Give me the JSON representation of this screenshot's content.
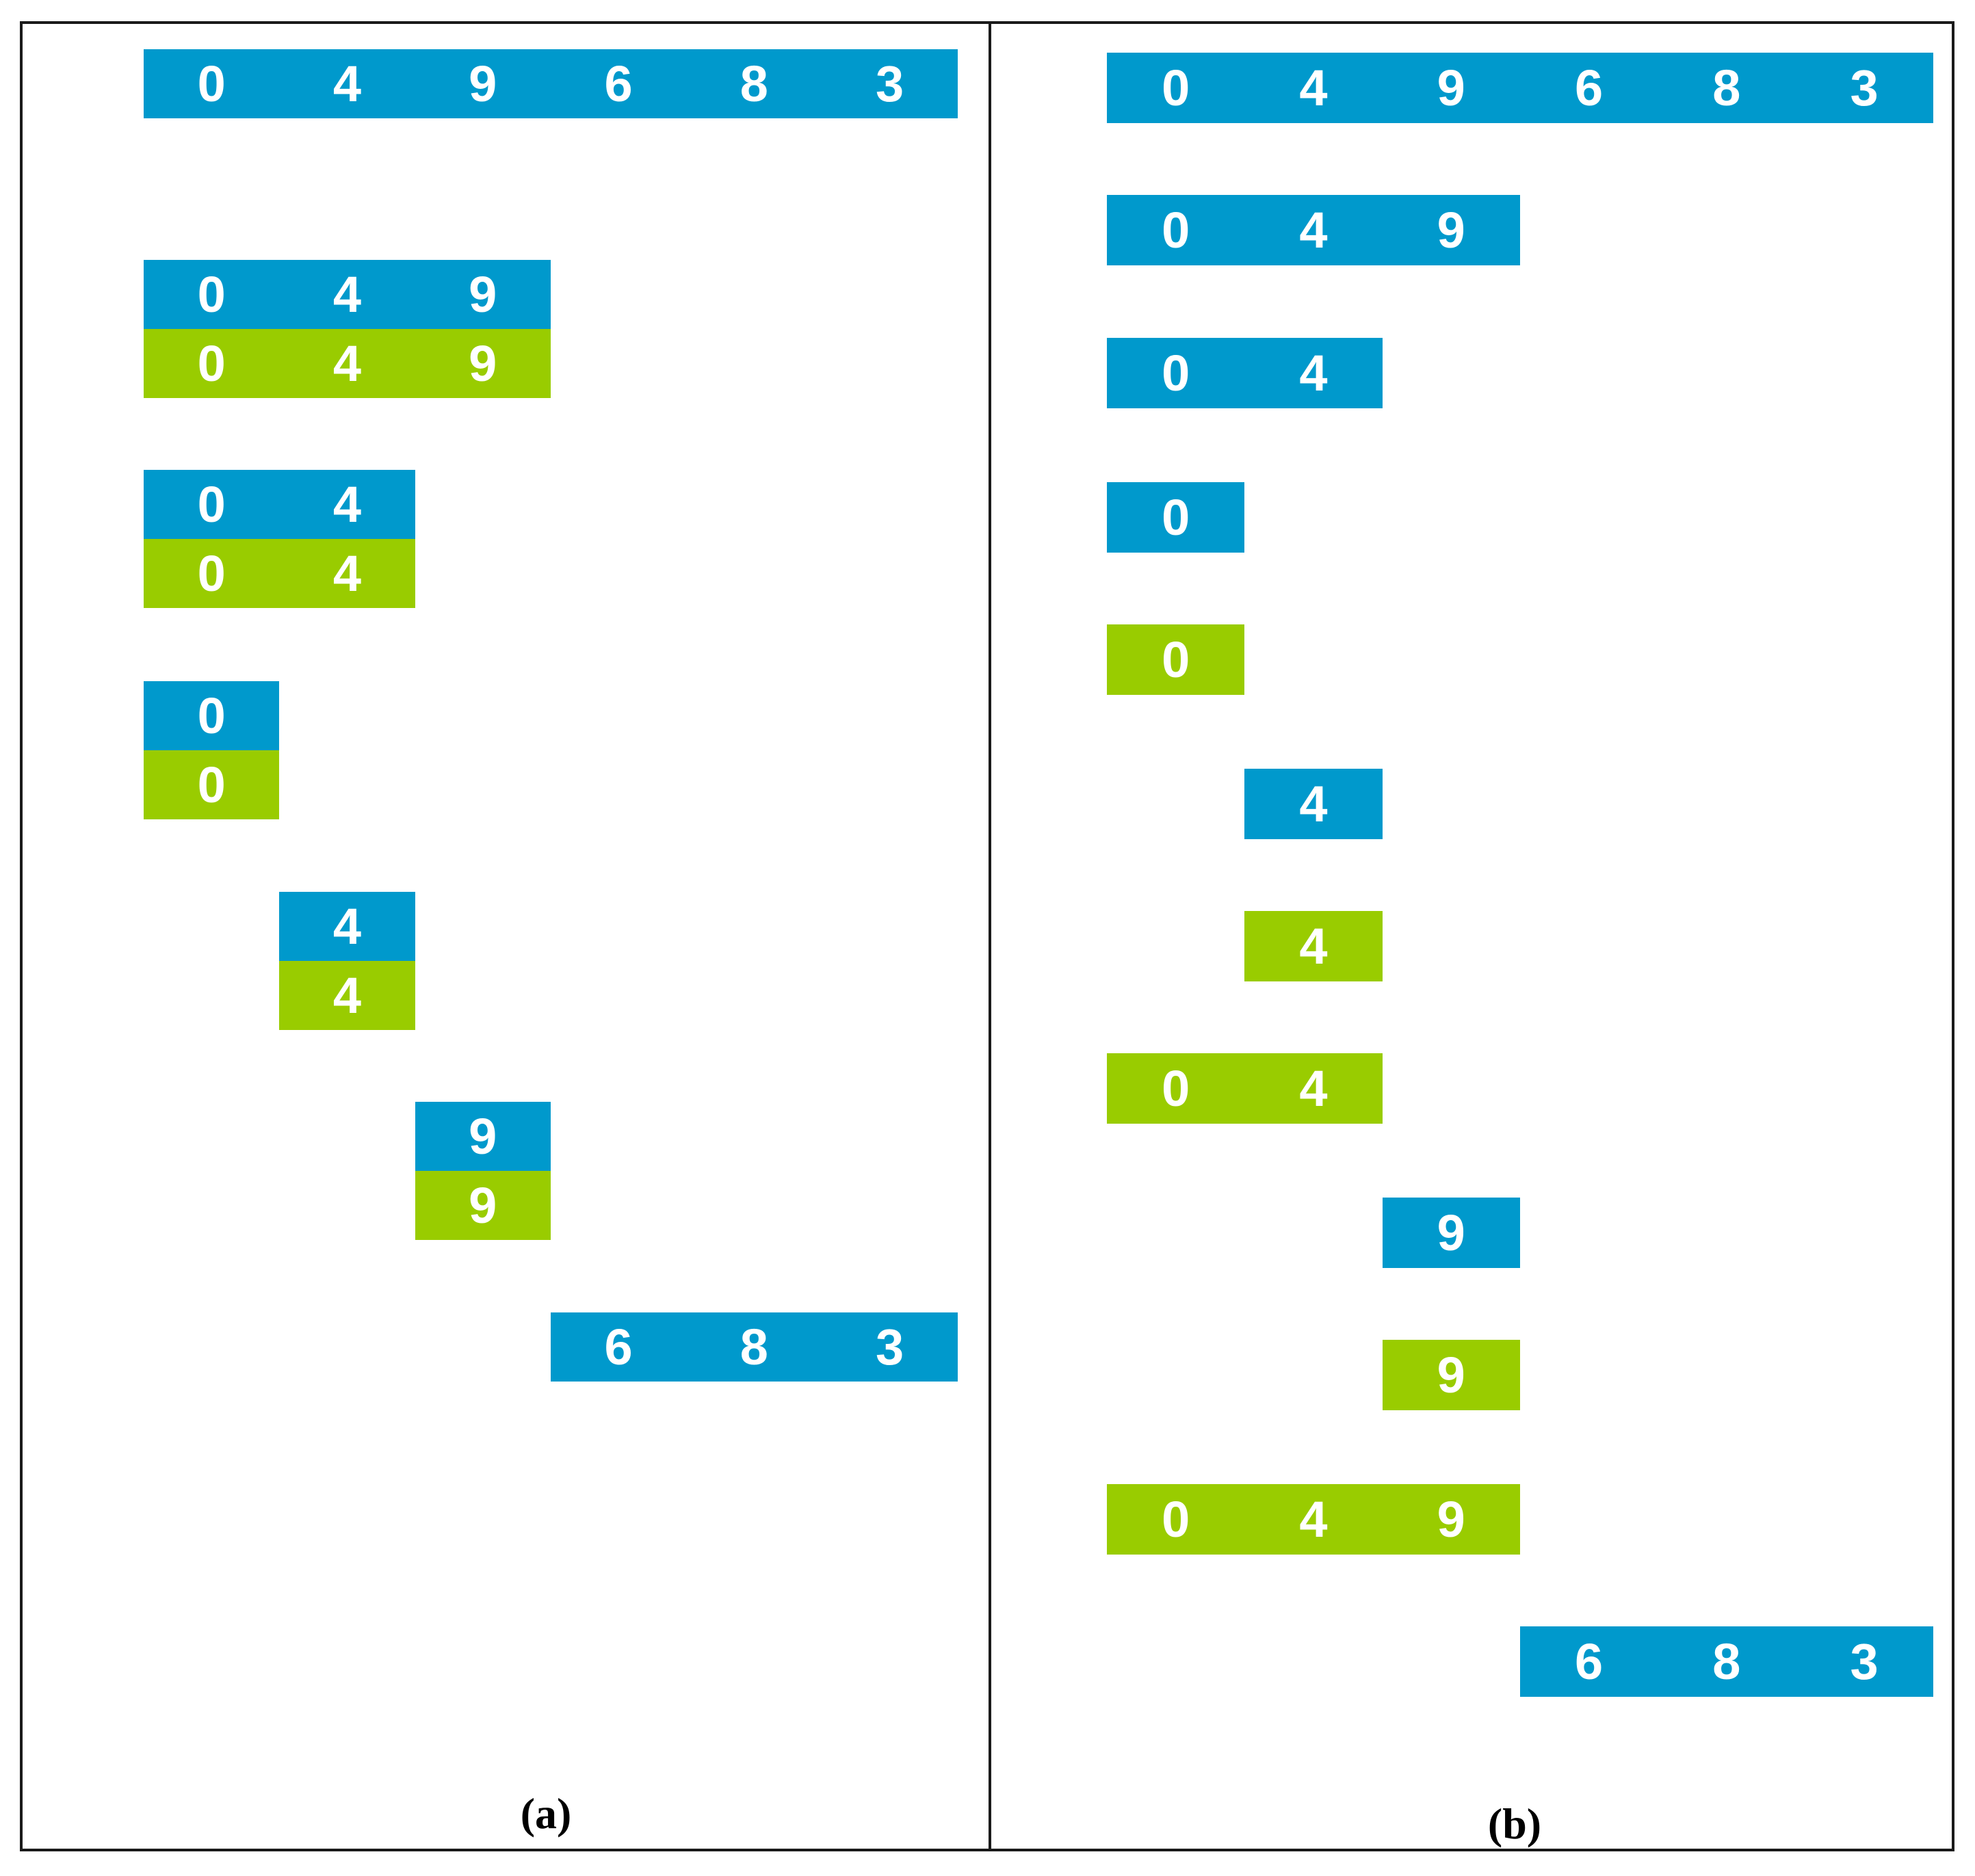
{
  "colors": {
    "blue": "#0099cc",
    "green": "#99cc00"
  },
  "panel_a": {
    "caption": "(a)",
    "bars": [
      {
        "color": "blue",
        "digits": [
          "0",
          "4",
          "9",
          "6",
          "8",
          "3"
        ]
      },
      {
        "color": "blue",
        "digits": [
          "0",
          "4",
          "9"
        ]
      },
      {
        "color": "green",
        "digits": [
          "0",
          "4",
          "9"
        ]
      },
      {
        "color": "blue",
        "digits": [
          "0",
          "4"
        ]
      },
      {
        "color": "green",
        "digits": [
          "0",
          "4"
        ]
      },
      {
        "color": "blue",
        "digits": [
          "0"
        ]
      },
      {
        "color": "green",
        "digits": [
          "0"
        ]
      },
      {
        "color": "blue",
        "digits": [
          "4"
        ]
      },
      {
        "color": "green",
        "digits": [
          "4"
        ]
      },
      {
        "color": "blue",
        "digits": [
          "9"
        ]
      },
      {
        "color": "green",
        "digits": [
          "9"
        ]
      },
      {
        "color": "blue",
        "digits": [
          "6",
          "8",
          "3"
        ]
      }
    ]
  },
  "panel_b": {
    "caption": "(b)",
    "bars": [
      {
        "color": "blue",
        "digits": [
          "0",
          "4",
          "9",
          "6",
          "8",
          "3"
        ]
      },
      {
        "color": "blue",
        "digits": [
          "0",
          "4",
          "9"
        ]
      },
      {
        "color": "blue",
        "digits": [
          "0",
          "4"
        ]
      },
      {
        "color": "blue",
        "digits": [
          "0"
        ]
      },
      {
        "color": "green",
        "digits": [
          "0"
        ]
      },
      {
        "color": "blue",
        "digits": [
          "4"
        ]
      },
      {
        "color": "green",
        "digits": [
          "4"
        ]
      },
      {
        "color": "green",
        "digits": [
          "0",
          "4"
        ]
      },
      {
        "color": "blue",
        "digits": [
          "9"
        ]
      },
      {
        "color": "green",
        "digits": [
          "9"
        ]
      },
      {
        "color": "green",
        "digits": [
          "0",
          "4",
          "9"
        ]
      },
      {
        "color": "blue",
        "digits": [
          "6",
          "8",
          "3"
        ]
      }
    ]
  }
}
